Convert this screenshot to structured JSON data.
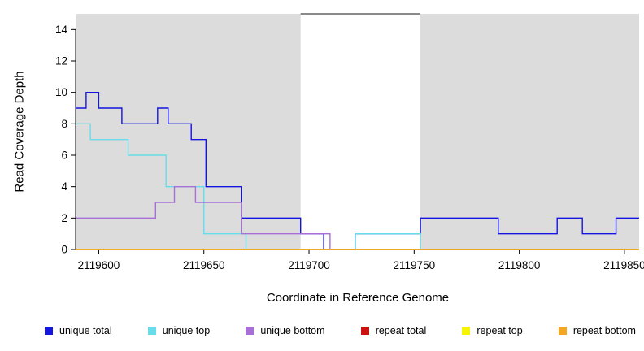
{
  "axes": {
    "x_title": "Coordinate in Reference Genome",
    "y_title": "Read Coverage Depth"
  },
  "chart_data": {
    "type": "line",
    "step": true,
    "title": "",
    "xlabel": "Coordinate in Reference Genome",
    "ylabel": "Read Coverage Depth",
    "xlim": [
      2119589,
      2119857
    ],
    "ylim": [
      0,
      15
    ],
    "xticks": [
      2119600,
      2119650,
      2119700,
      2119750,
      2119800,
      2119850
    ],
    "yticks": [
      0,
      2,
      4,
      6,
      8,
      10,
      12,
      14
    ],
    "grid": false,
    "legend_position": "bottom",
    "background_color": "#ffffff",
    "shaded_regions": [
      {
        "x0": 2119589,
        "x1": 2119696,
        "color": "#dcdcdc"
      },
      {
        "x0": 2119753,
        "x1": 2119857,
        "color": "#dcdcdc"
      }
    ],
    "top_marker": {
      "x0": 2119696,
      "x1": 2119753,
      "y": 15,
      "color": "#444444"
    },
    "series": [
      {
        "name": "unique total",
        "color": "#1515e0",
        "points": [
          [
            2119589,
            9
          ],
          [
            2119594,
            10
          ],
          [
            2119600,
            9
          ],
          [
            2119611,
            8
          ],
          [
            2119628,
            9
          ],
          [
            2119633,
            8
          ],
          [
            2119644,
            7
          ],
          [
            2119651,
            4
          ],
          [
            2119668,
            2
          ],
          [
            2119696,
            1
          ],
          [
            2119707,
            0
          ],
          [
            2119722,
            1
          ],
          [
            2119753,
            2
          ],
          [
            2119790,
            1
          ],
          [
            2119818,
            2
          ],
          [
            2119830,
            1
          ],
          [
            2119846,
            2
          ]
        ]
      },
      {
        "name": "unique top",
        "color": "#66dde8",
        "points": [
          [
            2119589,
            8
          ],
          [
            2119596,
            7
          ],
          [
            2119614,
            6
          ],
          [
            2119632,
            4
          ],
          [
            2119650,
            1
          ],
          [
            2119670,
            0
          ],
          [
            2119722,
            1
          ],
          [
            2119753,
            0
          ]
        ]
      },
      {
        "name": "unique bottom",
        "color": "#a86fd6",
        "points": [
          [
            2119589,
            2
          ],
          [
            2119627,
            3
          ],
          [
            2119636,
            4
          ],
          [
            2119646,
            3
          ],
          [
            2119668,
            1
          ],
          [
            2119710,
            0
          ]
        ]
      },
      {
        "name": "repeat total",
        "color": "#cc1111",
        "points": [
          [
            2119589,
            0
          ]
        ]
      },
      {
        "name": "repeat top",
        "color": "#f5f500",
        "points": [
          [
            2119589,
            0
          ]
        ]
      },
      {
        "name": "repeat bottom",
        "color": "#f5a623",
        "points": [
          [
            2119589,
            0
          ]
        ]
      }
    ]
  }
}
